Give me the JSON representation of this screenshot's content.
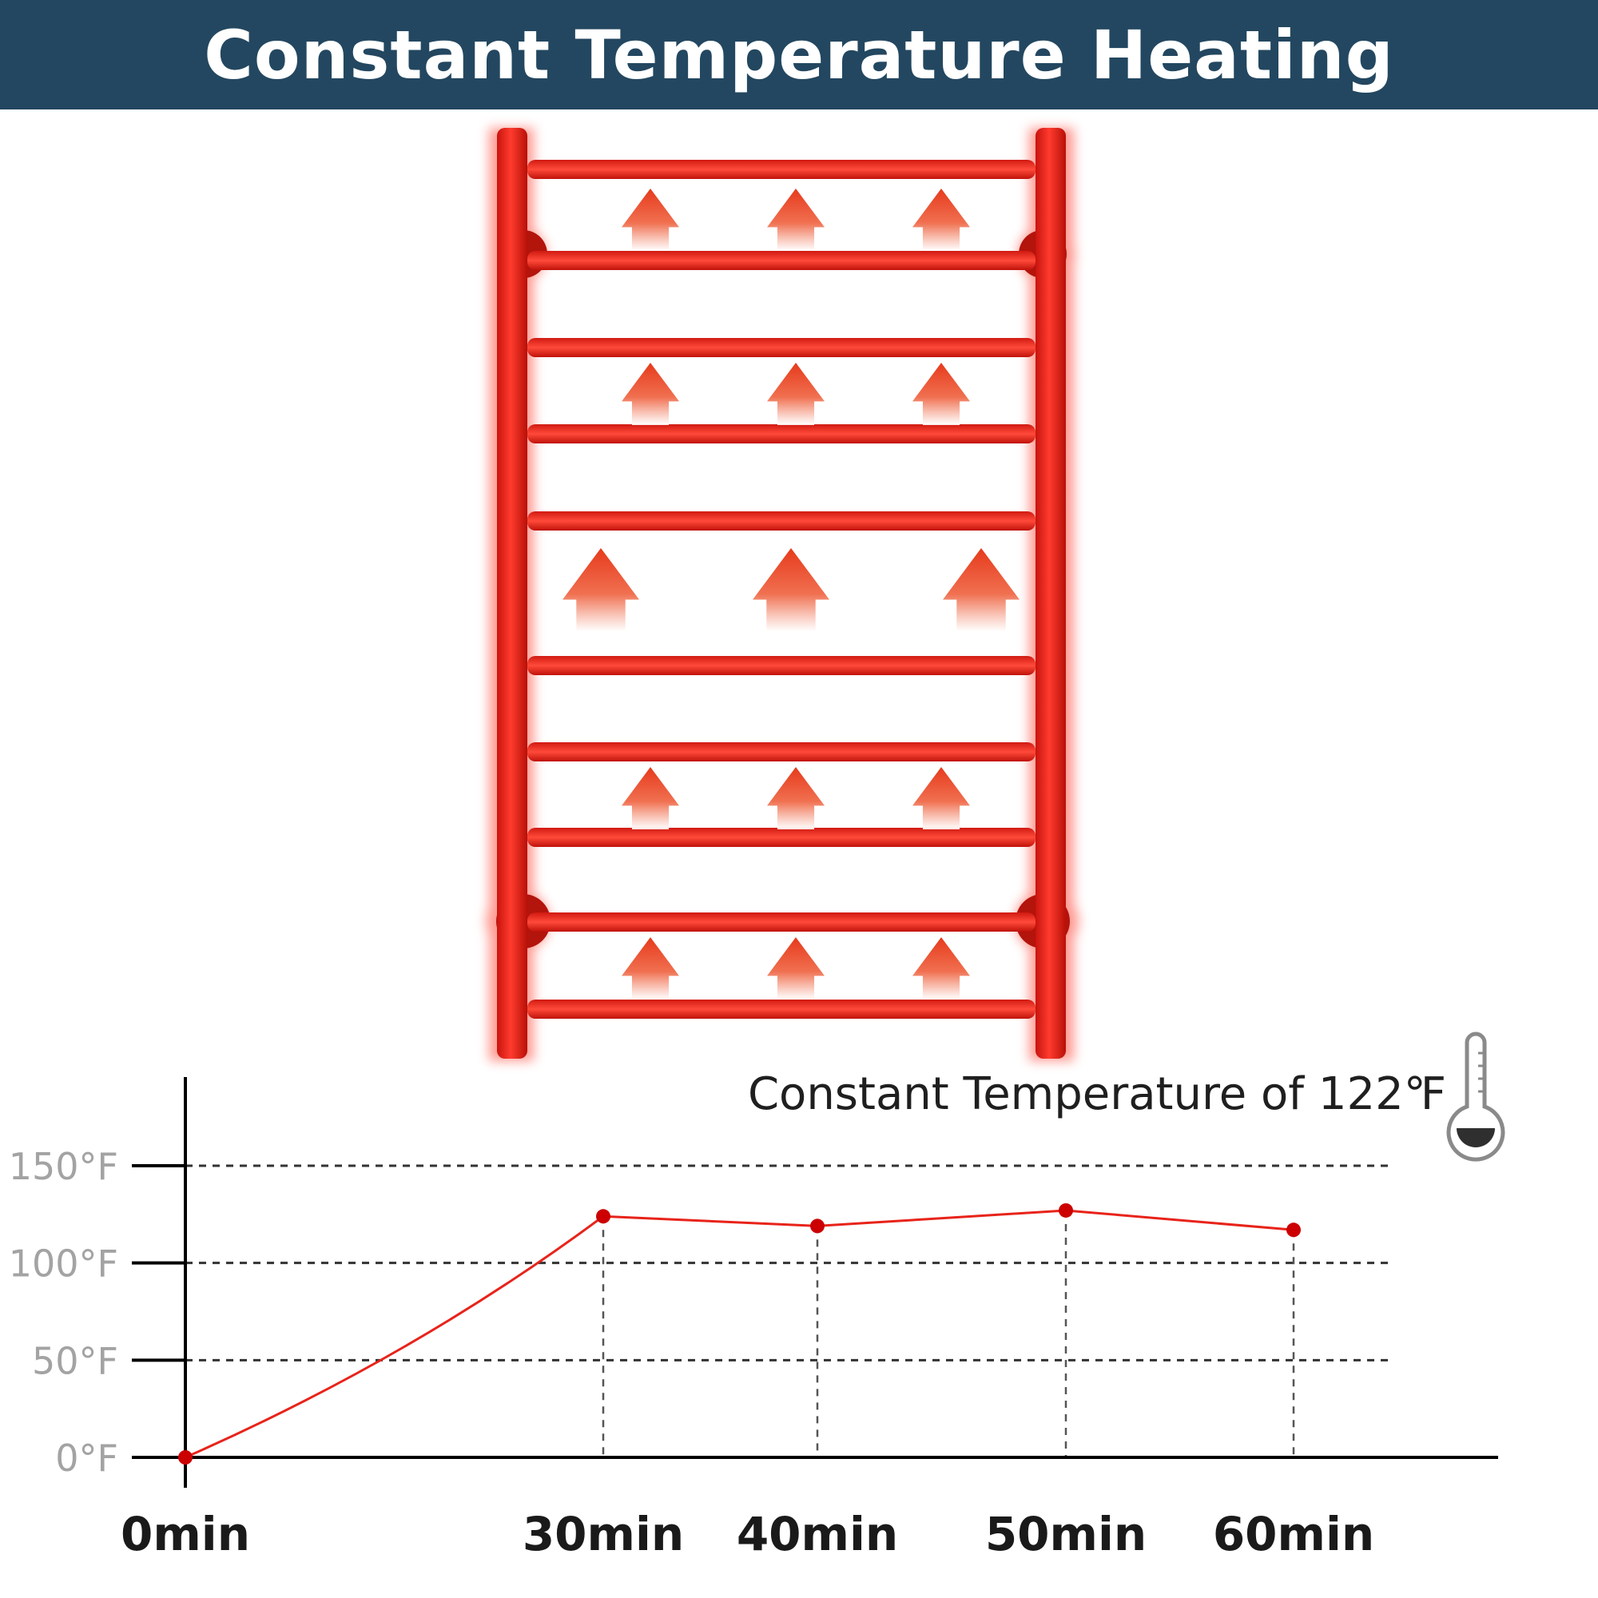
{
  "header": {
    "title": "Constant Temperature Heating"
  },
  "annotation": {
    "text": "Constant Temperature of 122℉"
  },
  "icons": {
    "thermometer": "thermometer-icon",
    "heat_arrow": "heat-up-arrow-icon"
  },
  "colors": {
    "header_bg": "#234760",
    "rail": "#e8231a",
    "line": "#e8231a",
    "point": "#cc0000",
    "axis": "#000000",
    "grid": "#333333"
  },
  "chart_data": {
    "type": "line",
    "title": "",
    "xlabel": "",
    "ylabel": "",
    "y_unit": "°F",
    "x_unit": "min",
    "ylim": [
      0,
      150
    ],
    "yticks": [
      {
        "value": 0,
        "label": "0°F"
      },
      {
        "value": 50,
        "label": "50°F"
      },
      {
        "value": 100,
        "label": "100°F"
      },
      {
        "value": 150,
        "label": "150°F"
      }
    ],
    "xticks": [
      {
        "value": 0,
        "label": "0min"
      },
      {
        "value": 30,
        "label": "30min"
      },
      {
        "value": 40,
        "label": "40min"
      },
      {
        "value": 50,
        "label": "50min"
      },
      {
        "value": 60,
        "label": "60min"
      }
    ],
    "grid": "horizontal dashed",
    "series": [
      {
        "values": [
          {
            "x": 0,
            "y": 0
          },
          {
            "x": 30,
            "y": 124
          },
          {
            "x": 40,
            "y": 119
          },
          {
            "x": 50,
            "y": 127
          },
          {
            "x": 60,
            "y": 117
          }
        ]
      }
    ]
  }
}
